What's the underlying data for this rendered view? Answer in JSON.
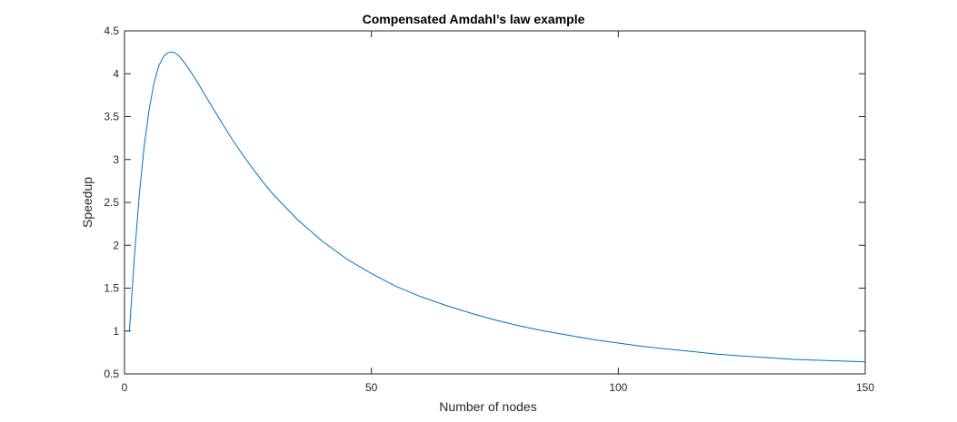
{
  "chart_data": {
    "type": "line",
    "title": "Compensated Amdahl’s law example",
    "xlabel": "Number of nodes",
    "ylabel": "Speedup",
    "xlim": [
      0,
      150
    ],
    "ylim": [
      0.5,
      4.5
    ],
    "xticks": [
      0,
      50,
      100,
      150
    ],
    "yticks": [
      0.5,
      1,
      1.5,
      2,
      2.5,
      3,
      3.5,
      4,
      4.5
    ],
    "xtick_labels": [
      "0",
      "50",
      "100",
      "150"
    ],
    "ytick_labels": [
      "0.5",
      "1",
      "1.5",
      "2",
      "2.5",
      "3",
      "3.5",
      "4",
      "4.5"
    ],
    "grid": false,
    "line_color": "#0072BD",
    "series": [
      {
        "x": [
          1,
          2,
          3,
          4,
          5,
          6,
          7,
          8,
          9,
          10,
          11,
          12,
          13,
          14,
          15,
          16,
          18,
          20,
          22,
          24,
          26,
          28,
          30,
          35,
          40,
          45,
          50,
          55,
          60,
          65,
          70,
          75,
          80,
          85,
          90,
          95,
          100,
          105,
          110,
          115,
          120,
          125,
          130,
          135,
          140,
          145,
          150
        ],
        "y": [
          1.0,
          1.87,
          2.59,
          3.16,
          3.59,
          3.9,
          4.1,
          4.21,
          4.25,
          4.25,
          4.21,
          4.14,
          4.06,
          3.97,
          3.88,
          3.78,
          3.59,
          3.4,
          3.22,
          3.05,
          2.89,
          2.74,
          2.6,
          2.3,
          2.05,
          1.84,
          1.67,
          1.52,
          1.4,
          1.3,
          1.21,
          1.13,
          1.06,
          1.0,
          0.95,
          0.9,
          0.86,
          0.82,
          0.79,
          0.76,
          0.73,
          0.71,
          0.69,
          0.67,
          0.66,
          0.65,
          0.64
        ]
      }
    ]
  }
}
